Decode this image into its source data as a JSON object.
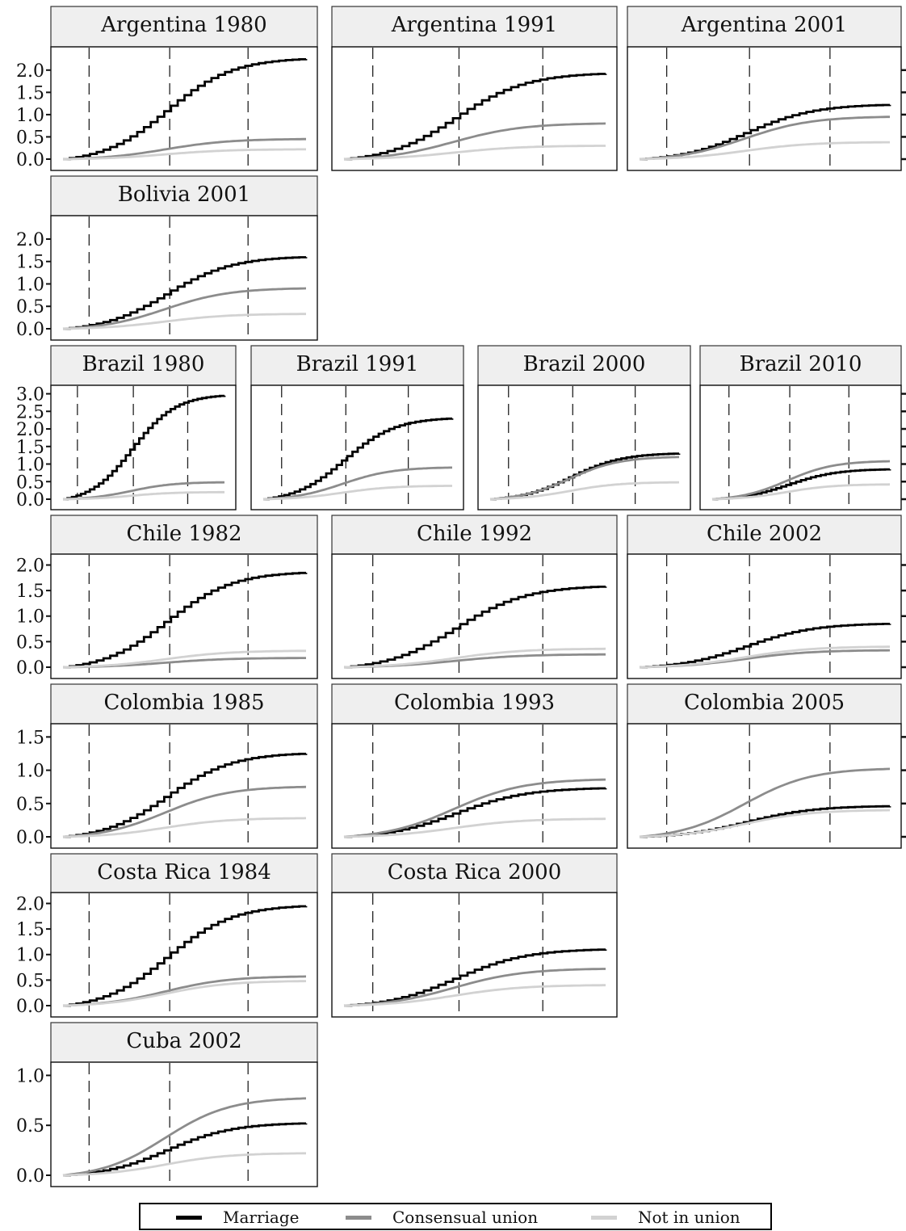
{
  "chart_data": {
    "type": "line",
    "series": [
      {
        "name": "Marriage",
        "color": "#000000",
        "stepped": true
      },
      {
        "name": "Consensual union",
        "color": "#8c8c8c",
        "stepped": false
      },
      {
        "name": "Not in union",
        "color": "#d2d2d2",
        "stepped": false
      }
    ],
    "reference_lines": "dashed vertical lines",
    "x_range": [
      0,
      1
    ],
    "legend_position": "bottom",
    "panels": [
      {
        "title": "Argentina 1980",
        "yticks": [
          "0.0",
          "0.5",
          "1.0",
          "1.5",
          "2.0"
        ],
        "ylim": [
          -0.08,
          2.45
        ],
        "final": {
          "Marriage": 2.25,
          "Consensual union": 0.45,
          "Not in union": 0.22
        }
      },
      {
        "title": "Argentina 1991",
        "ylim": [
          -0.08,
          2.45
        ],
        "final": {
          "Marriage": 1.92,
          "Consensual union": 0.8,
          "Not in union": 0.3
        }
      },
      {
        "title": "Argentina 2001",
        "ylim": [
          -0.08,
          2.45
        ],
        "final": {
          "Marriage": 1.22,
          "Consensual union": 0.95,
          "Not in union": 0.38
        }
      },
      {
        "title": "Bolivia 2001",
        "yticks": [
          "0.0",
          "0.5",
          "1.0",
          "1.5",
          "2.0"
        ],
        "ylim": [
          -0.08,
          2.45
        ],
        "final": {
          "Marriage": 1.6,
          "Consensual union": 0.9,
          "Not in union": 0.33
        }
      },
      {
        "title": "Brazil 1980",
        "yticks": [
          "0.0",
          "0.5",
          "1.0",
          "1.5",
          "2.0",
          "2.5",
          "3.0"
        ],
        "ylim": [
          -0.12,
          3.15
        ],
        "final": {
          "Marriage": 2.95,
          "Consensual union": 0.48,
          "Not in union": 0.2
        }
      },
      {
        "title": "Brazil 1991",
        "ylim": [
          -0.12,
          3.15
        ],
        "final": {
          "Marriage": 2.3,
          "Consensual union": 0.9,
          "Not in union": 0.38
        }
      },
      {
        "title": "Brazil 2000",
        "ylim": [
          -0.12,
          3.15
        ],
        "final": {
          "Marriage": 1.3,
          "Consensual union": 1.2,
          "Not in union": 0.48
        }
      },
      {
        "title": "Brazil 2010",
        "ylim": [
          -0.12,
          3.15
        ],
        "final": {
          "Marriage": 0.85,
          "Consensual union": 1.08,
          "Not in union": 0.42
        }
      },
      {
        "title": "Chile 1982",
        "yticks": [
          "0.0",
          "0.5",
          "1.0",
          "1.5",
          "2.0"
        ],
        "ylim": [
          -0.08,
          2.15
        ],
        "final": {
          "Marriage": 1.85,
          "Consensual union": 0.18,
          "Not in union": 0.32
        }
      },
      {
        "title": "Chile 1992",
        "ylim": [
          -0.08,
          2.15
        ],
        "final": {
          "Marriage": 1.58,
          "Consensual union": 0.25,
          "Not in union": 0.36
        }
      },
      {
        "title": "Chile 2002",
        "ylim": [
          -0.08,
          2.15
        ],
        "final": {
          "Marriage": 0.85,
          "Consensual union": 0.33,
          "Not in union": 0.4
        }
      },
      {
        "title": "Colombia 1985",
        "yticks": [
          "0.0",
          "0.5",
          "1.0",
          "1.5"
        ],
        "ylim": [
          -0.05,
          1.65
        ],
        "final": {
          "Marriage": 1.25,
          "Consensual union": 0.75,
          "Not in union": 0.28
        }
      },
      {
        "title": "Colombia 1993",
        "ylim": [
          -0.05,
          1.65
        ],
        "final": {
          "Marriage": 0.73,
          "Consensual union": 0.86,
          "Not in union": 0.27
        }
      },
      {
        "title": "Colombia 2005",
        "ylim": [
          -0.05,
          1.65
        ],
        "final": {
          "Marriage": 0.46,
          "Consensual union": 1.02,
          "Not in union": 0.4
        }
      },
      {
        "title": "Costa Rica 1984",
        "yticks": [
          "0.0",
          "0.5",
          "1.0",
          "1.5",
          "2.0"
        ],
        "ylim": [
          -0.08,
          2.15
        ],
        "final": {
          "Marriage": 1.95,
          "Consensual union": 0.57,
          "Not in union": 0.48
        }
      },
      {
        "title": "Costa Rica 2000",
        "ylim": [
          -0.08,
          2.15
        ],
        "final": {
          "Marriage": 1.1,
          "Consensual union": 0.72,
          "Not in union": 0.4
        }
      },
      {
        "title": "Cuba 2002",
        "yticks": [
          "0.0",
          "0.5",
          "1.0"
        ],
        "ylim": [
          -0.03,
          1.1
        ],
        "final": {
          "Marriage": 0.52,
          "Consensual union": 0.77,
          "Not in union": 0.22
        }
      }
    ]
  },
  "legend": {
    "items": [
      {
        "label": "Marriage",
        "color": "#000000"
      },
      {
        "label": "Consensual union",
        "color": "#8c8c8c"
      },
      {
        "label": "Not in union",
        "color": "#d2d2d2"
      }
    ]
  }
}
